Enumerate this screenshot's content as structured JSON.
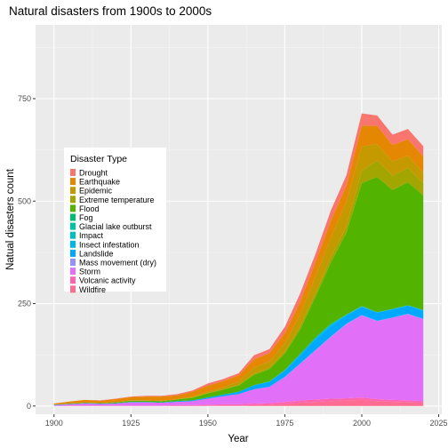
{
  "chart_data": {
    "type": "area",
    "stacked": true,
    "title": "Natural disasters from 1900s to 2000s",
    "xlabel": "Year",
    "ylabel": "Natual disasters count",
    "xlim": [
      1900,
      2025
    ],
    "ylim": [
      0,
      900
    ],
    "x_ticks": [
      1900,
      1925,
      1950,
      1975,
      2000,
      2025
    ],
    "y_ticks": [
      0,
      250,
      500,
      750
    ],
    "grid": true,
    "legend": {
      "title": "Disaster Type",
      "position": "left-middle"
    },
    "x": [
      1900,
      1905,
      1910,
      1915,
      1920,
      1925,
      1930,
      1935,
      1940,
      1945,
      1950,
      1955,
      1960,
      1965,
      1970,
      1975,
      1980,
      1985,
      1990,
      1995,
      2000,
      2005,
      2010,
      2015,
      2020
    ],
    "series": [
      {
        "name": "Wildfire",
        "color": "#FF6C91",
        "values": [
          0,
          0,
          0,
          0,
          0,
          0,
          0,
          0,
          0,
          0,
          1,
          1,
          1,
          2,
          3,
          5,
          8,
          10,
          12,
          14,
          15,
          12,
          10,
          9,
          8
        ]
      },
      {
        "name": "Volcanic activity",
        "color": "#FF64B0",
        "values": [
          0,
          1,
          1,
          1,
          1,
          1,
          1,
          1,
          2,
          2,
          2,
          3,
          3,
          4,
          4,
          5,
          5,
          6,
          6,
          5,
          6,
          5,
          5,
          5,
          4
        ]
      },
      {
        "name": "Storm",
        "color": "#E26FF7",
        "values": [
          2,
          3,
          5,
          4,
          5,
          8,
          8,
          7,
          8,
          10,
          15,
          20,
          25,
          35,
          40,
          60,
          90,
          120,
          150,
          180,
          200,
          190,
          200,
          210,
          200
        ]
      },
      {
        "name": "Mass movement (dry)",
        "color": "#9590FF",
        "values": [
          0,
          0,
          0,
          0,
          0,
          0,
          0,
          0,
          0,
          0,
          0,
          0,
          0,
          0,
          0,
          1,
          1,
          1,
          2,
          2,
          1,
          1,
          1,
          1,
          1
        ]
      },
      {
        "name": "Landslide",
        "color": "#00A9FF",
        "values": [
          1,
          1,
          1,
          1,
          1,
          1,
          1,
          1,
          2,
          2,
          3,
          4,
          6,
          10,
          12,
          15,
          20,
          25,
          25,
          20,
          20,
          20,
          20,
          20,
          20
        ]
      },
      {
        "name": "Insect infestation",
        "color": "#00B8E7",
        "values": [
          0,
          0,
          0,
          0,
          0,
          0,
          0,
          0,
          0,
          0,
          0,
          0,
          0,
          0,
          1,
          2,
          3,
          5,
          5,
          2,
          1,
          1,
          1,
          1,
          1
        ]
      },
      {
        "name": "Impact",
        "color": "#00BFC4",
        "values": [
          0,
          0,
          0,
          0,
          0,
          0,
          0,
          0,
          0,
          0,
          0,
          0,
          0,
          0,
          0,
          0,
          0,
          0,
          0,
          0,
          0,
          0,
          0,
          0,
          0
        ]
      },
      {
        "name": "Glacial lake outburst",
        "color": "#00C1A3",
        "values": [
          0,
          0,
          0,
          0,
          0,
          0,
          0,
          0,
          0,
          0,
          0,
          0,
          0,
          0,
          0,
          0,
          0,
          0,
          0,
          0,
          1,
          0,
          0,
          0,
          0
        ]
      },
      {
        "name": "Fog",
        "color": "#00BE70",
        "values": [
          0,
          0,
          0,
          0,
          0,
          0,
          0,
          0,
          0,
          0,
          0,
          0,
          0,
          0,
          0,
          0,
          0,
          0,
          1,
          0,
          0,
          0,
          0,
          0,
          0
        ]
      },
      {
        "name": "Flood",
        "color": "#53B400",
        "values": [
          0,
          1,
          1,
          1,
          2,
          3,
          3,
          3,
          4,
          6,
          10,
          12,
          15,
          25,
          30,
          40,
          60,
          100,
          150,
          200,
          300,
          330,
          290,
          300,
          280
        ]
      },
      {
        "name": "Extreme temperature",
        "color": "#A3A500",
        "values": [
          0,
          0,
          0,
          0,
          0,
          0,
          0,
          0,
          0,
          1,
          1,
          1,
          2,
          3,
          4,
          5,
          8,
          10,
          12,
          15,
          30,
          40,
          35,
          35,
          30
        ]
      },
      {
        "name": "Epidemic",
        "color": "#C49A00",
        "values": [
          0,
          0,
          0,
          0,
          0,
          1,
          1,
          1,
          1,
          2,
          3,
          5,
          8,
          15,
          15,
          20,
          30,
          40,
          50,
          60,
          60,
          40,
          35,
          30,
          25
        ]
      },
      {
        "name": "Earthquake",
        "color": "#E58700",
        "values": [
          3,
          5,
          7,
          6,
          8,
          8,
          9,
          10,
          9,
          12,
          15,
          15,
          15,
          20,
          20,
          25,
          30,
          35,
          40,
          40,
          50,
          45,
          40,
          40,
          40
        ]
      },
      {
        "name": "Drought",
        "color": "#F8766D",
        "values": [
          0,
          0,
          0,
          1,
          1,
          1,
          2,
          2,
          3,
          3,
          5,
          5,
          5,
          10,
          10,
          15,
          20,
          20,
          25,
          25,
          30,
          25,
          25,
          25,
          25
        ]
      }
    ]
  }
}
